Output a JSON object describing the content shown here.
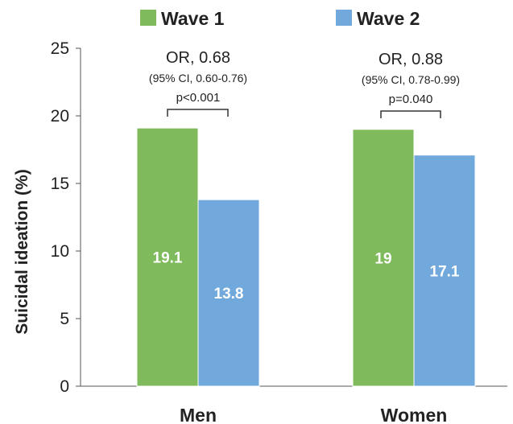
{
  "chart_data": {
    "type": "bar",
    "categories": [
      "Men",
      "Women"
    ],
    "series": [
      {
        "name": "Wave 1",
        "values": [
          19.1,
          19
        ],
        "labels": [
          "19.1",
          "19"
        ],
        "color": "#7fba5c"
      },
      {
        "name": "Wave 2",
        "values": [
          13.8,
          17.1
        ],
        "labels": [
          "13.8",
          "17.1"
        ],
        "color": "#72a9dc"
      }
    ],
    "ylabel": "Suicidal ideation (%)",
    "ylim": [
      0,
      25
    ],
    "yticks": [
      "0",
      "5",
      "10",
      "15",
      "20",
      "25"
    ],
    "legend_position": "top",
    "grid": false,
    "annotations": [
      {
        "or": "OR, 0.68",
        "ci": "(95% CI, 0.60-0.76)",
        "p": "p<0.001"
      },
      {
        "or": "OR, 0.88",
        "ci": "(95% CI, 0.78-0.99)",
        "p": "p=0.040"
      }
    ]
  }
}
